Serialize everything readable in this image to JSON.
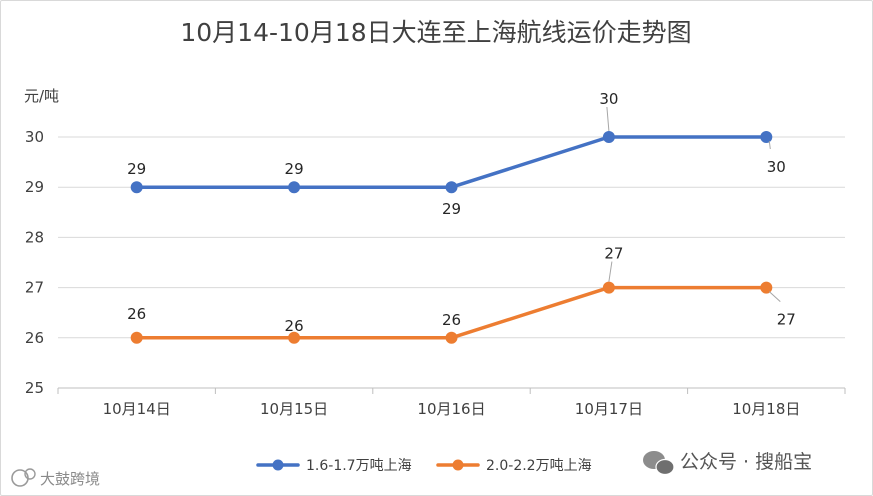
{
  "chart_data": {
    "type": "line",
    "title": "10月14-10月18日大连至上海航线运价走势图",
    "ylabel": "元/吨",
    "categories": [
      "10月14日",
      "10月15日",
      "10月16日",
      "10月17日",
      "10月18日"
    ],
    "ylim": [
      25,
      30
    ],
    "yticks": [
      25,
      26,
      27,
      28,
      29,
      30
    ],
    "grid": true,
    "legend_position": "bottom",
    "series": [
      {
        "name": "1.6-1.7万吨上海",
        "values": [
          29,
          29,
          29,
          30,
          30
        ],
        "color": "#4472c4"
      },
      {
        "name": "2.0-2.2万吨上海",
        "values": [
          26,
          26,
          26,
          27,
          27
        ],
        "color": "#ed7d31"
      }
    ]
  },
  "watermark": {
    "left_text": "大鼓跨境",
    "right_text": "公众号 · 搜船宝"
  }
}
